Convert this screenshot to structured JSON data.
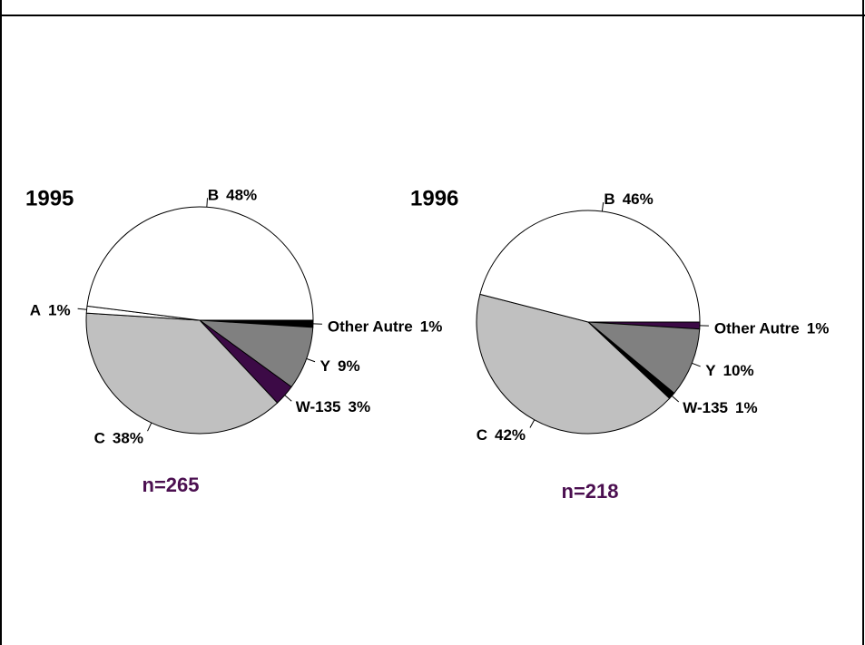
{
  "chart_data": [
    {
      "type": "pie",
      "title": "1995",
      "note": "n=265",
      "categories": [
        "Other Autre",
        "Y",
        "W-135",
        "C",
        "A",
        "B"
      ],
      "values": [
        1,
        9,
        3,
        38,
        1,
        48
      ],
      "value_labels": [
        "1%",
        "9%",
        "3%",
        "38%",
        "1%",
        "48%"
      ],
      "colors": [
        "#000000",
        "#808080",
        "#3c0a46",
        "#c0c0c0",
        "#ffffff",
        "#ffffff"
      ]
    },
    {
      "type": "pie",
      "title": "1996",
      "note": "n=218",
      "categories": [
        "Other Autre",
        "Y",
        "W-135",
        "C",
        "B"
      ],
      "values": [
        1,
        10,
        1,
        42,
        46
      ],
      "value_labels": [
        "1%",
        "10%",
        "1%",
        "42%",
        "46%"
      ],
      "colors": [
        "#3c0a46",
        "#808080",
        "#000000",
        "#c0c0c0",
        "#ffffff"
      ]
    }
  ]
}
